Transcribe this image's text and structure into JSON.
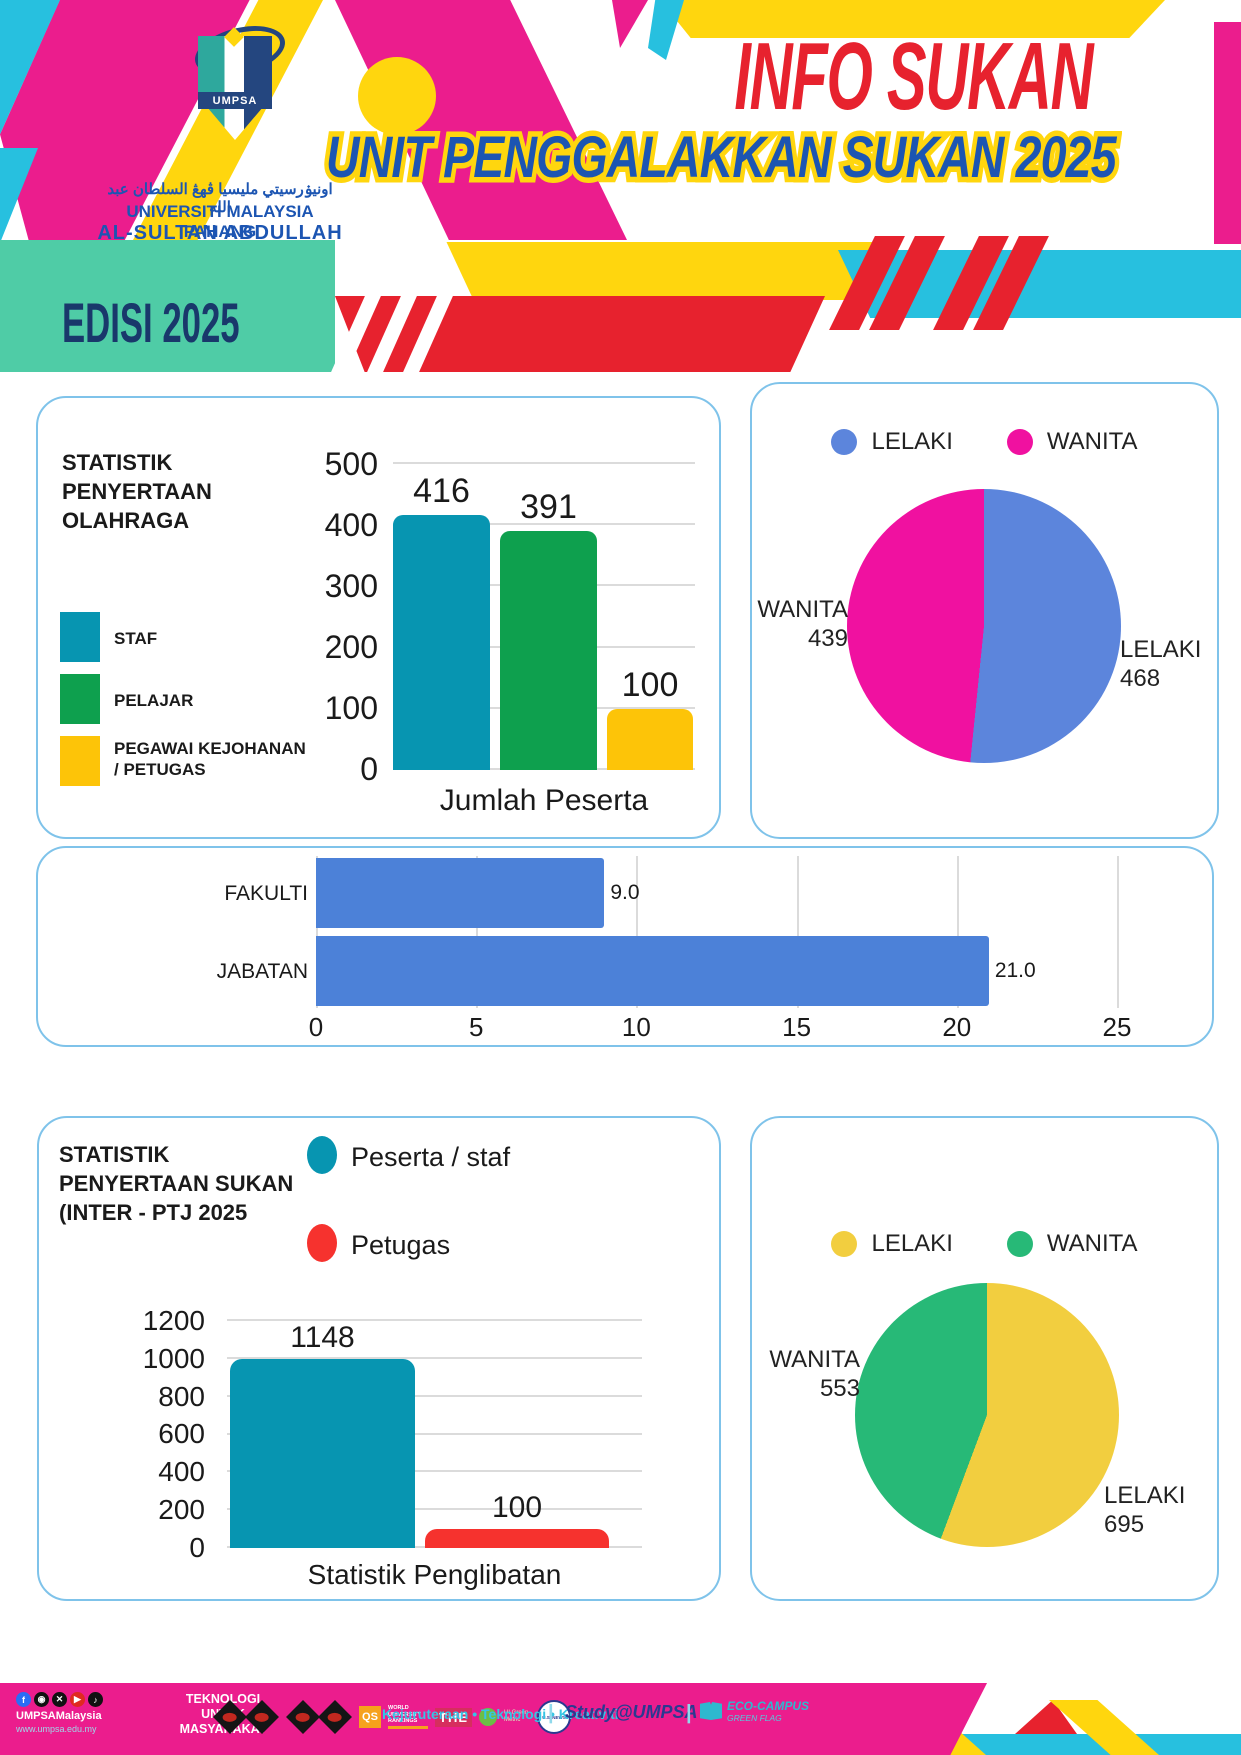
{
  "header": {
    "title": "INFO SUKAN",
    "subtitle": "UNIT PENGGALAKKAN SUKAN 2025",
    "edition": "EDISI 2025",
    "logo": {
      "arabic": "اونيۏرسيتي مليسيا ڤهڠ السلطان عبد الله",
      "university_line1": "UNIVERSITI MALAYSIA PAHANG",
      "university_line2": "AL-SULTAN ABDULLAH",
      "shield_text": "UMPSA"
    }
  },
  "colors": {
    "magenta": "#EB1D8D",
    "cyan": "#27C0DF",
    "yellow": "#FFD60E",
    "red": "#E7222E",
    "teal_band": "#4FCCA6",
    "navy": "#19386B",
    "title_red": "#E7222E",
    "title_blue": "#1C55B2",
    "card_border": "#7FC3EA"
  },
  "chart_data": [
    {
      "id": "olahraga_bar",
      "type": "bar",
      "title": "STATISTIK PENYERTAAN OLAHRAGA",
      "title_lines": [
        "STATISTIK",
        "PENYERTAAN",
        "OLAHRAGA"
      ],
      "categories": [
        "STAF",
        "PELAJAR",
        "PEGAWAI KEJOHANAN / PETUGAS"
      ],
      "values": [
        416,
        391,
        100
      ],
      "value_labels": [
        "416",
        "391",
        "100"
      ],
      "colors": [
        "#0795B1",
        "#0EA04E",
        "#FDC408"
      ],
      "xlabel": "Jumlah Peserta",
      "ylabel": "",
      "ylim": [
        0,
        500
      ],
      "yticks": [
        500,
        400,
        300,
        200,
        100,
        0
      ],
      "grid": true,
      "legend_position": "left"
    },
    {
      "id": "olahraga_gender_pie",
      "type": "pie",
      "labels": [
        "LELAKI",
        "WANITA"
      ],
      "values": [
        468,
        439
      ],
      "colors": [
        "#5C85DC",
        "#F011A0"
      ],
      "legend_position": "top",
      "slice_labels": [
        [
          "LELAKI",
          "468"
        ],
        [
          "WANITA",
          "439"
        ]
      ]
    },
    {
      "id": "ptj_hbar",
      "type": "bar",
      "orientation": "horizontal",
      "categories": [
        "FAKULTI",
        "JABATAN"
      ],
      "values": [
        9.0,
        21.0
      ],
      "value_labels": [
        "9.0",
        "21.0"
      ],
      "color": "#4C81D8",
      "xlim": [
        0,
        25
      ],
      "xticks": [
        0,
        5,
        10,
        15,
        20,
        25
      ],
      "grid": true
    },
    {
      "id": "sukan_bar",
      "type": "bar",
      "title": "STATISTIK PENYERTAAN SUKAN (INTER - PTJ 2025",
      "title_lines": [
        "STATISTIK",
        "PENYERTAAN SUKAN",
        "(INTER - PTJ 2025"
      ],
      "categories": [
        "Peserta / staf",
        "Petugas"
      ],
      "values": [
        1148,
        100
      ],
      "value_labels": [
        "1148",
        "100"
      ],
      "colors": [
        "#0795B1",
        "#F6322E"
      ],
      "xlabel": "Statistik Penglibatan",
      "ylim": [
        0,
        1200
      ],
      "yticks": [
        1200,
        1000,
        800,
        600,
        400,
        200,
        0
      ],
      "grid": true,
      "legend_position": "top"
    },
    {
      "id": "sukan_gender_pie",
      "type": "pie",
      "labels": [
        "LELAKI",
        "WANITA"
      ],
      "values": [
        695,
        553
      ],
      "colors": [
        "#F2CE3F",
        "#27B977"
      ],
      "legend_position": "top",
      "slice_labels": [
        [
          "LELAKI",
          "695"
        ],
        [
          "WANITA",
          "553"
        ]
      ]
    }
  ],
  "footer": {
    "social_handle": "UMPSAMalaysia",
    "website": "www.umpsa.edu.my",
    "slogan_lines": [
      "TEKNOLOGI",
      "UNTUK",
      "MASYARAKAT"
    ],
    "tagline": "Kejuruteraan • Teknologi • Kreativiti",
    "separator": "|",
    "brand": "Study@UMPSA",
    "eco_campus": "ECO-CAMPUS",
    "eco_flag": "GREEN FLAG",
    "logos": {
      "qs": "QS",
      "qs_caption": "WORLD UNIVERSITY RANKINGS",
      "the": "THE",
      "ui_caption": "UI Green Metric",
      "usnews": "U.S. NEWS"
    }
  }
}
